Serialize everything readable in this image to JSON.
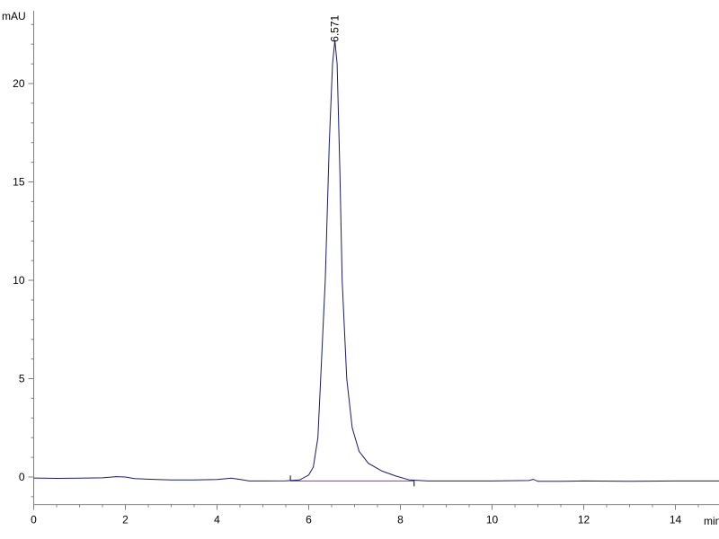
{
  "chart_data": {
    "type": "line",
    "title": "",
    "xlabel": "min",
    "ylabel": "mAU",
    "xlim": [
      0,
      15
    ],
    "ylim": [
      -1.4,
      23.7
    ],
    "x_ticks": [
      "0",
      "2",
      "4",
      "6",
      "8",
      "10",
      "12",
      "14"
    ],
    "x_tick_values": [
      0,
      2,
      4,
      6,
      8,
      10,
      12,
      14
    ],
    "y_ticks": [
      "0",
      "5",
      "10",
      "15",
      "20"
    ],
    "y_tick_values": [
      0,
      5,
      10,
      15,
      20
    ],
    "grid": false,
    "colors": {
      "signal": "#1a1a6e",
      "baseline": "#e000e0",
      "axis": "#808080"
    },
    "series": [
      {
        "x": [
          0,
          0.5,
          1.0,
          1.5,
          1.8,
          2.0,
          2.2,
          2.6,
          3.0,
          3.5,
          4.0,
          4.3,
          4.5,
          4.7,
          5.0,
          5.5,
          5.8,
          6.0,
          6.1,
          6.2,
          6.26,
          6.36,
          6.45,
          6.52,
          6.571,
          6.62,
          6.68,
          6.73,
          6.83,
          6.95,
          7.1,
          7.3,
          7.6,
          7.9,
          8.2,
          8.6,
          9.0,
          10.0,
          10.8,
          10.9,
          11.0,
          11.5,
          12.0,
          13.0,
          14.0,
          15.0
        ],
        "y": [
          -0.05,
          -0.07,
          -0.06,
          -0.04,
          0.02,
          0.0,
          -0.08,
          -0.12,
          -0.15,
          -0.15,
          -0.13,
          -0.06,
          -0.12,
          -0.2,
          -0.2,
          -0.19,
          -0.15,
          0.1,
          0.5,
          2.0,
          5.0,
          10.0,
          17.0,
          21.0,
          22.2,
          21.0,
          15.5,
          10.0,
          5.0,
          2.5,
          1.3,
          0.7,
          0.3,
          0.05,
          -0.15,
          -0.2,
          -0.2,
          -0.2,
          -0.18,
          -0.12,
          -0.22,
          -0.22,
          -0.2,
          -0.22,
          -0.2,
          -0.2
        ]
      }
    ],
    "integration_baseline": {
      "x": [
        5.6,
        8.3
      ],
      "y": [
        -0.2,
        -0.2
      ]
    },
    "annotations": [
      {
        "label": "6.571",
        "x": 6.571,
        "y": 22.2
      }
    ]
  }
}
